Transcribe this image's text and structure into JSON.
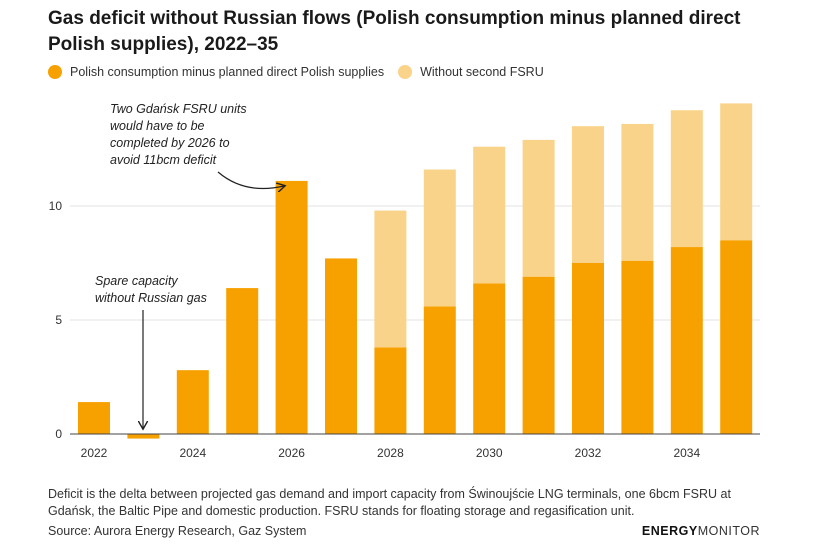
{
  "header": {
    "title": "Gas deficit without Russian flows (Polish consumption minus planned direct Polish supplies), 2022–35"
  },
  "legend": [
    {
      "label": "Polish consumption minus planned direct Polish supplies",
      "color": "#F7A100"
    },
    {
      "label": "Without second FSRU",
      "color": "#F9D38A"
    }
  ],
  "chart_data": {
    "type": "bar",
    "stacked": true,
    "categories": [
      "2022",
      "2023",
      "2024",
      "2025",
      "2026",
      "2027",
      "2028",
      "2029",
      "2030",
      "2031",
      "2032",
      "2033",
      "2034",
      "2035"
    ],
    "x_tick_labels": [
      "2022",
      "",
      "2024",
      "",
      "2026",
      "",
      "2028",
      "",
      "2030",
      "",
      "2032",
      "",
      "2034",
      ""
    ],
    "series": [
      {
        "name": "Polish consumption minus planned direct Polish supplies",
        "color": "#F7A100",
        "values": [
          1.4,
          -0.2,
          2.8,
          6.4,
          11.1,
          7.7,
          3.8,
          5.6,
          6.6,
          6.9,
          7.5,
          7.6,
          8.2,
          8.5
        ]
      },
      {
        "name": "Without second FSRU",
        "color": "#F9D38A",
        "values": [
          0,
          0,
          0,
          0,
          0,
          0,
          6.0,
          6.0,
          6.0,
          6.0,
          6.0,
          6.0,
          6.0,
          6.0
        ]
      }
    ],
    "y_ticks": [
      0,
      5,
      10
    ],
    "ylim": [
      -0.3,
      14.7
    ],
    "grid": true,
    "legend_position": "top-left",
    "annotations": [
      {
        "text": [
          "Two Gdańsk FSRU units",
          "would have to be",
          "completed by 2026 to",
          "avoid 11bcm deficit"
        ],
        "target": "2026"
      },
      {
        "text": [
          "Spare capacity",
          "without Russian gas"
        ],
        "target": "2023"
      }
    ]
  },
  "footer": {
    "note": "Deficit is the delta between projected gas demand and import capacity from Świnoujście LNG terminals, one 6bcm FSRU at Gdańsk, the Baltic Pipe and domestic production. FSRU stands for floating storage and regasification unit.",
    "source": "Source: Aurora Energy Research, Gaz System",
    "logo_bold": "ENERGY",
    "logo_light": "MONITOR"
  }
}
